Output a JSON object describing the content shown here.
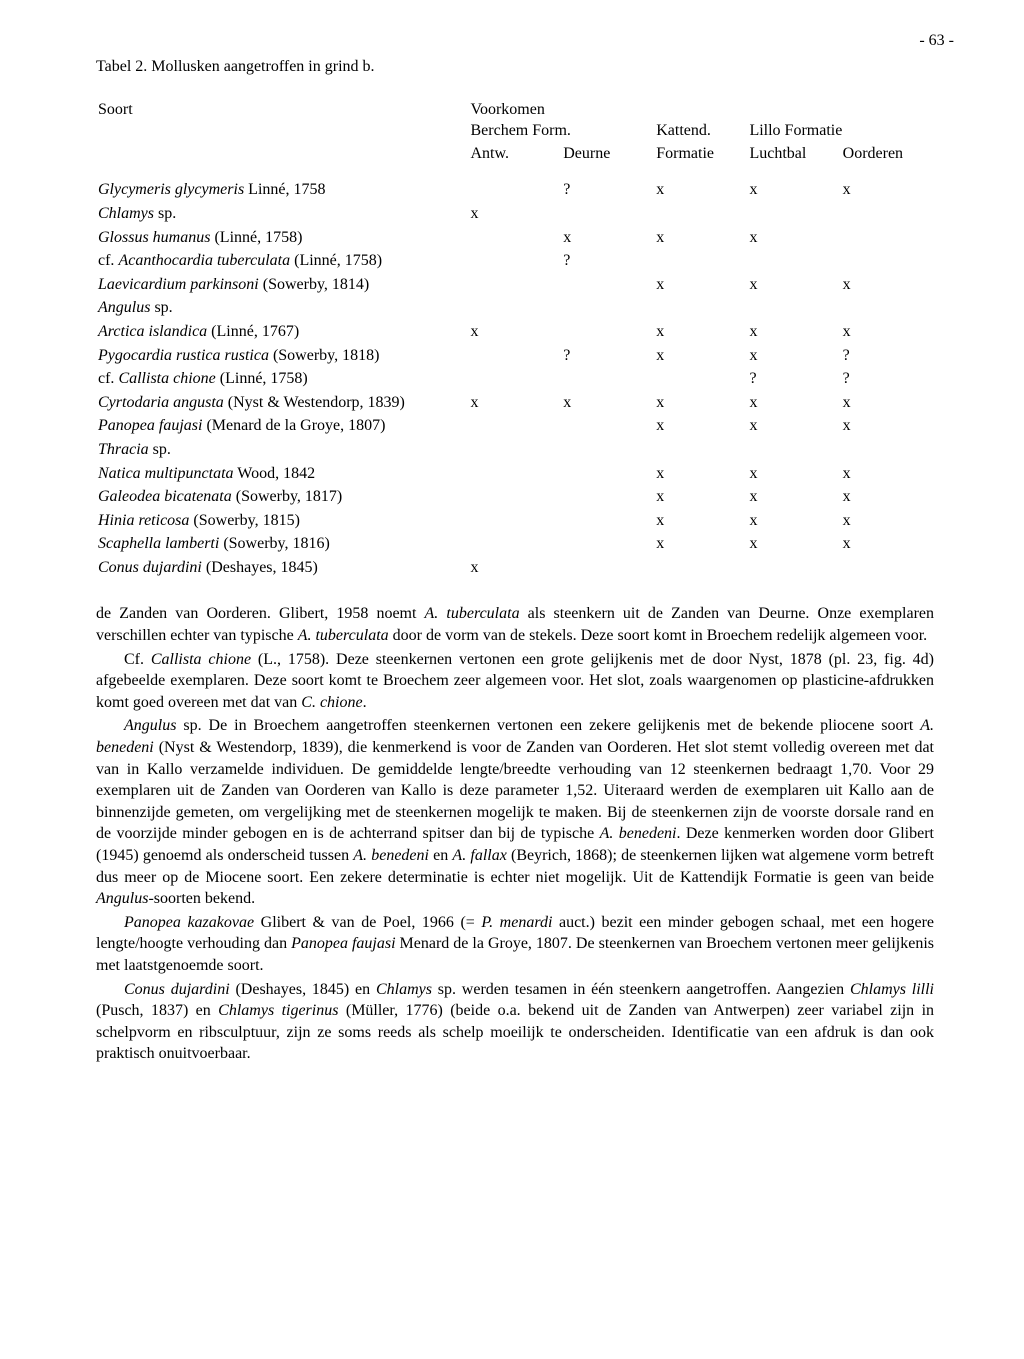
{
  "page_number": "- 63 -",
  "table_title": "Tabel 2. Mollusken aangetroffen in grind b.",
  "headers": {
    "soort": "Soort",
    "voorkomen": "Voorkomen",
    "berchem_form": "Berchem Form.",
    "kattend": "Kattend.",
    "lillo_formatie": "Lillo Formatie",
    "antw": "Antw.",
    "deurne": "Deurne",
    "formatie": "Formatie",
    "luchtbal": "Luchtbal",
    "oorderen": "Oorderen"
  },
  "rows": [
    {
      "name_it": "Glycymeris glycymeris",
      "name_rest": " Linné, 1758",
      "c": [
        "",
        "?",
        "x",
        "x",
        "x"
      ]
    },
    {
      "name_it": "Chlamys",
      "name_rest": " sp.",
      "c": [
        "x",
        "",
        "",
        "",
        ""
      ]
    },
    {
      "name_it": "Glossus humanus",
      "name_rest": " (Linné, 1758)",
      "c": [
        "",
        "x",
        "x",
        "x",
        ""
      ]
    },
    {
      "name_it": "",
      "prefix": "cf. ",
      "name_it2": "Acanthocardia tuberculata",
      "name_rest": " (Linné, 1758)",
      "c": [
        "",
        "?",
        "",
        "",
        ""
      ]
    },
    {
      "name_it": "Laevicardium parkinsoni",
      "name_rest": " (Sowerby, 1814)",
      "c": [
        "",
        "",
        "x",
        "x",
        "x"
      ]
    },
    {
      "name_it": "Angulus",
      "name_rest": " sp.",
      "c": [
        "",
        "",
        "",
        "",
        ""
      ]
    },
    {
      "name_it": "Arctica islandica",
      "name_rest": " (Linné, 1767)",
      "c": [
        "x",
        "",
        "x",
        "x",
        "x"
      ]
    },
    {
      "name_it": "Pygocardia rustica rustica",
      "name_rest": " (Sowerby, 1818)",
      "c": [
        "",
        "?",
        "x",
        "x",
        "?"
      ]
    },
    {
      "name_it": "",
      "prefix": "cf. ",
      "name_it2": "Callista chione",
      "name_rest": " (Linné, 1758)",
      "c": [
        "",
        "",
        "",
        "?",
        "?"
      ]
    },
    {
      "name_it": "Cyrtodaria angusta",
      "name_rest": " (Nyst & Westendorp, 1839)",
      "c": [
        "x",
        "x",
        "x",
        "x",
        "x"
      ]
    },
    {
      "name_it": "Panopea faujasi",
      "name_rest": " (Menard de la Groye, 1807)",
      "c": [
        "",
        "",
        "x",
        "x",
        "x"
      ]
    },
    {
      "name_it": "Thracia",
      "name_rest": " sp.",
      "c": [
        "",
        "",
        "",
        "",
        ""
      ]
    },
    {
      "name_it": "Natica multipunctata",
      "name_rest": " Wood, 1842",
      "c": [
        "",
        "",
        "x",
        "x",
        "x"
      ]
    },
    {
      "name_it": "Galeodea bicatenata",
      "name_rest": " (Sowerby, 1817)",
      "c": [
        "",
        "",
        "x",
        "x",
        "x"
      ]
    },
    {
      "name_it": "Hinia reticosa",
      "name_rest": " (Sowerby, 1815)",
      "c": [
        "",
        "",
        "x",
        "x",
        "x"
      ]
    },
    {
      "name_it": "Scaphella lamberti",
      "name_rest": " (Sowerby, 1816)",
      "c": [
        "",
        "",
        "x",
        "x",
        "x"
      ]
    },
    {
      "name_it": "Conus dujardini",
      "name_rest": " (Deshayes, 1845)",
      "c": [
        "x",
        "",
        "",
        "",
        ""
      ]
    }
  ],
  "paragraphs": {
    "p1a": "de Zanden van Oorderen. Glibert, 1958 noemt ",
    "p1b": "A. tuberculata",
    "p1c": " als steenkern uit de Zanden van Deurne. Onze exemplaren verschillen echter van typische ",
    "p1d": "A. tuberculata",
    "p1e": " door de vorm van de stekels. Deze soort komt in Broechem redelijk algemeen voor.",
    "p2a": "Cf. ",
    "p2b": "Callista chione",
    "p2c": " (L., 1758). Deze steenkernen vertonen een grote gelijkenis met de door Nyst, 1878 (pl. 23, fig. 4d) afgebeelde exemplaren. Deze soort komt te Broechem zeer algemeen voor. Het slot, zoals waargenomen op plasticine-afdrukken komt goed overeen met dat van ",
    "p2d": "C. chione",
    "p2e": ".",
    "p3a": "Angulus",
    "p3b": " sp. De in Broechem aangetroffen steenkernen vertonen een zekere gelijkenis met de bekende pliocene soort ",
    "p3c": "A. benedeni",
    "p3d": " (Nyst & Westendorp, 1839), die kenmerkend is voor de Zanden van Oorderen. Het slot stemt volledig overeen met dat van in Kallo verzamelde individuen. De gemiddelde lengte/breedte verhouding van 12 steenkernen bedraagt 1,70. Voor 29 exemplaren uit de Zanden van Oorderen van Kallo is deze parameter 1,52. Uiteraard werden de exemplaren uit Kallo aan de binnenzijde gemeten, om vergelijking met de steenkernen mogelijk te maken. Bij de steenkernen zijn de voorste dorsale rand en de voorzijde minder gebogen en is de achterrand spitser dan bij de typische ",
    "p3e": "A. benedeni",
    "p3f": ". Deze kenmerken worden door Glibert (1945) genoemd als onderscheid tussen ",
    "p3g": "A. benedeni",
    "p3h": " en ",
    "p3i": "A. fallax",
    "p3j": " (Beyrich, 1868); de steenkernen lijken wat algemene vorm betreft dus meer op de Miocene soort. Een zekere determinatie is echter niet mogelijk. Uit de Kattendijk Formatie is geen van beide ",
    "p3k": "Angulus",
    "p3l": "-soorten bekend.",
    "p4a": "Panopea kazakovae",
    "p4b": " Glibert & van de Poel, 1966 (= ",
    "p4c": "P. menardi",
    "p4d": " auct.) bezit een minder gebogen schaal, met een hogere lengte/hoogte verhouding dan ",
    "p4e": "Panopea faujasi",
    "p4f": " Menard de la Groye, 1807. De steenkernen van Broechem vertonen meer gelijkenis met laatstgenoemde soort.",
    "p5a": "Conus dujardini",
    "p5b": " (Deshayes, 1845) en ",
    "p5c": "Chlamys",
    "p5d": " sp. werden tesamen in één steenkern aangetroffen. Aangezien ",
    "p5e": "Chlamys lilli",
    "p5f": " (Pusch, 1837) en ",
    "p5g": "Chlamys tigerinus",
    "p5h": " (Müller, 1776) (beide o.a. bekend uit de Zanden van Antwerpen) zeer variabel zijn in schelpvorm en ribsculptuur, zijn ze soms reeds als schelp moeilijk te onderscheiden. Identificatie van een afdruk is dan ook praktisch onuitvoerbaar."
  }
}
